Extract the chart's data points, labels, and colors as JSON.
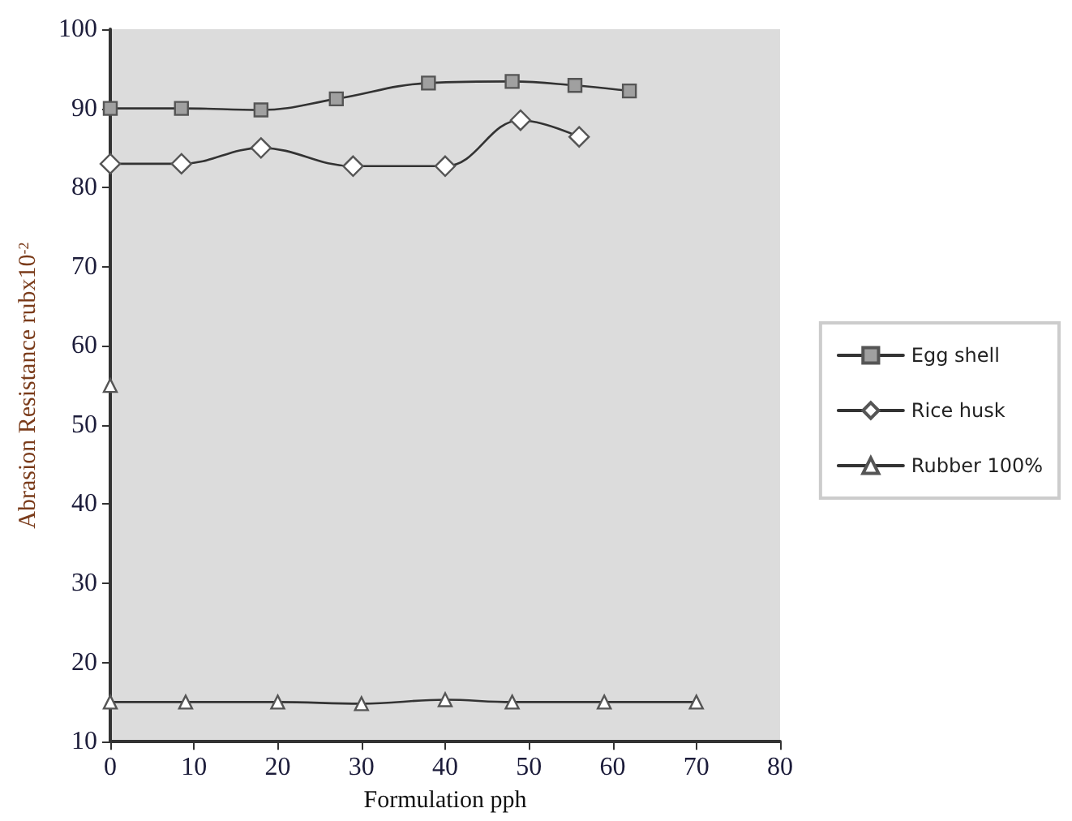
{
  "chart_data": {
    "type": "line",
    "xlabel": "Formulation pph",
    "ylabel": "Abrasion Resistance rubx10$^{-2}$",
    "xlim": [
      0,
      80
    ],
    "xticks": [
      0,
      10,
      20,
      30,
      40,
      50,
      60,
      70,
      80
    ],
    "ylim": [
      10,
      100
    ],
    "yticks": [
      10,
      20,
      30,
      40,
      50,
      60,
      70,
      80,
      90,
      100
    ],
    "grid": false,
    "legend": "right",
    "line_style": "solid",
    "series": [
      {
        "name": "Egg shell",
        "color": "#a0a0a0",
        "marker": "square",
        "x": [
          0,
          8.5,
          18,
          27,
          38,
          48,
          55.5,
          62
        ],
        "values": [
          90,
          90,
          89.8,
          91.2,
          93.2,
          93.4,
          92.9,
          92.2
        ]
      },
      {
        "name": "Rice husk",
        "color": "#ffffff",
        "marker": "diamond",
        "x": [
          0,
          8.5,
          18,
          29,
          40,
          49,
          56
        ],
        "values": [
          83,
          83,
          85,
          82.7,
          82.7,
          88.5,
          86.4
        ]
      },
      {
        "name": "Rubber 100%",
        "color": "#ffffff",
        "marker": "triangle",
        "x": [
          0,
          0,
          9,
          20,
          30,
          40,
          48,
          59,
          70
        ],
        "values": [
          55,
          15,
          15,
          15,
          14.8,
          15.3,
          15,
          15,
          15
        ]
      }
    ]
  }
}
